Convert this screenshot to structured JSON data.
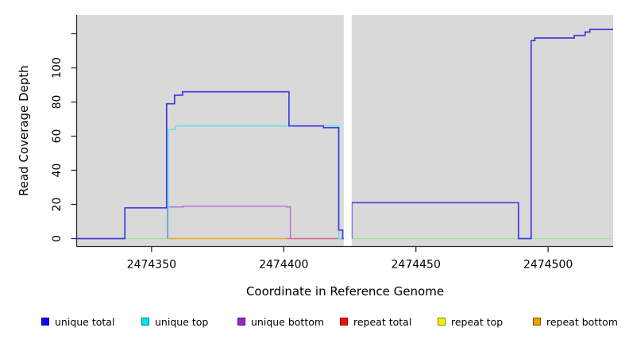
{
  "figure": {
    "y_axis_title": "Read Coverage Depth",
    "x_axis_title": "Coordinate in Reference Genome"
  },
  "chart_data": {
    "type": "line",
    "title": "",
    "xlabel": "Coordinate in Reference Genome",
    "ylabel": "Read Coverage Depth",
    "xlim": [
      2474321.8,
      2474524.6
    ],
    "ylim": [
      0,
      130
    ],
    "x_ticks": [
      2474350,
      2474400,
      2474450,
      2474500
    ],
    "x_tick_labels": [
      "2474350",
      "2474400",
      "2474450",
      "2474500"
    ],
    "y_ticks": [
      0,
      20,
      40,
      60,
      80,
      100,
      120
    ],
    "y_tick_labels": [
      "0",
      "20",
      "40",
      "60",
      "80",
      "100",
      ""
    ],
    "grid": false,
    "panel_bg": "#d9d9d9",
    "axis_color": "#2a2a2a",
    "coverage_gap": {
      "x_start": 2474422.7,
      "x_end": 2474425.7
    },
    "series": [
      {
        "name": "zero baseline",
        "in_legend": false,
        "color": "#90ee90",
        "width": 1.3,
        "segments": [
          [
            [
              2474340,
              0
            ],
            [
              2474356,
              0
            ]
          ],
          [
            [
              2474425.7,
              0
            ],
            [
              2474524.6,
              0
            ]
          ]
        ]
      },
      {
        "name": "repeat bottom",
        "in_legend": true,
        "color": "#ffa517",
        "width": 1.5,
        "segments": [
          [
            [
              2474356,
              0
            ],
            [
              2474401,
              0
            ]
          ]
        ]
      },
      {
        "name": "unique bottom",
        "in_legend": true,
        "color": "#a766e0",
        "width": 1.3,
        "segments": [
          [
            [
              2474356,
              0
            ],
            [
              2474356,
              18.5
            ],
            [
              2474362,
              18.5
            ],
            [
              2474362,
              19
            ],
            [
              2474401,
              19
            ],
            [
              2474401,
              18.5
            ],
            [
              2474402.5,
              18.5
            ],
            [
              2474402.5,
              0
            ],
            [
              2474422.7,
              0
            ]
          ]
        ]
      },
      {
        "name": "repeat total",
        "in_legend": true,
        "color": "#e0608c",
        "width": 1.3,
        "segments": [
          [
            [
              2474401,
              0
            ],
            [
              2474422.7,
              0
            ]
          ]
        ]
      },
      {
        "name": "repeat top",
        "in_legend": true,
        "color": "#f2f200",
        "width": 1.3,
        "segments": []
      },
      {
        "name": "unique top",
        "in_legend": true,
        "color": "#55e2e8",
        "width": 1.4,
        "segments": [
          [
            [
              2474356.3,
              0
            ],
            [
              2474356.3,
              64
            ],
            [
              2474359,
              64
            ],
            [
              2474359,
              66
            ],
            [
              2474420.8,
              66
            ],
            [
              2474420.8,
              0
            ],
            [
              2474422.7,
              0
            ]
          ]
        ]
      },
      {
        "name": "unique total",
        "in_legend": true,
        "color": "#4339e0",
        "width": 1.7,
        "segments": [
          [
            [
              2474321.8,
              0
            ],
            [
              2474339.9,
              0
            ],
            [
              2474339.9,
              18
            ],
            [
              2474355.7,
              18
            ],
            [
              2474355.7,
              79
            ],
            [
              2474358.7,
              79
            ],
            [
              2474358.7,
              84
            ],
            [
              2474361.7,
              84
            ],
            [
              2474361.7,
              86
            ],
            [
              2474402,
              86
            ],
            [
              2474402,
              66
            ],
            [
              2474415,
              66
            ],
            [
              2474415,
              65
            ],
            [
              2474420.8,
              65
            ],
            [
              2474420.8,
              5
            ],
            [
              2474422.3,
              5
            ],
            [
              2474422.3,
              0
            ],
            [
              2474422.7,
              0
            ]
          ],
          [
            [
              2474425.7,
              0
            ],
            [
              2474425.7,
              21
            ],
            [
              2474488.8,
              21
            ],
            [
              2474488.8,
              0
            ],
            [
              2474493.6,
              0
            ],
            [
              2474493.6,
              116
            ],
            [
              2474495,
              116
            ],
            [
              2474495,
              117.5
            ],
            [
              2474509.9,
              117.5
            ],
            [
              2474509.9,
              119
            ],
            [
              2474514,
              119
            ],
            [
              2474514,
              121
            ],
            [
              2474515.8,
              121
            ],
            [
              2474515.8,
              122.5
            ],
            [
              2474524.6,
              122.5
            ]
          ]
        ]
      }
    ],
    "legend": {
      "position": "bottom",
      "items": [
        {
          "label": "unique total",
          "color": "#0a0aee"
        },
        {
          "label": "unique top",
          "color": "#00e5ee"
        },
        {
          "label": "unique bottom",
          "color": "#9a22d4"
        },
        {
          "label": "repeat total",
          "color": "#ee1111"
        },
        {
          "label": "repeat top",
          "color": "#f2f200"
        },
        {
          "label": "repeat bottom",
          "color": "#f59d00"
        }
      ]
    }
  }
}
